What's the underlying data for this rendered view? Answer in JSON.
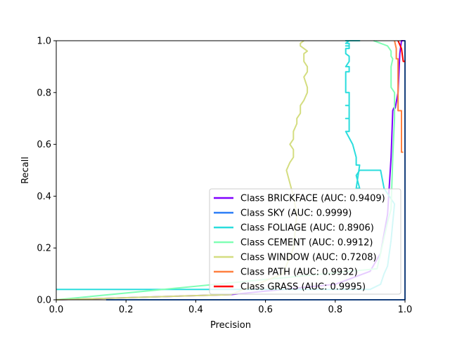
{
  "chart_data": {
    "type": "line",
    "title": "",
    "xlabel": "Precision",
    "ylabel": "Recall",
    "xlim": [
      0,
      1
    ],
    "ylim": [
      0,
      1
    ],
    "xticks": [
      "0.0",
      "0.2",
      "0.4",
      "0.6",
      "0.8",
      "1.0"
    ],
    "yticks": [
      "0.0",
      "0.2",
      "0.4",
      "0.6",
      "0.8",
      "1.0"
    ],
    "grid": false,
    "legend_position": "lower-right",
    "series": [
      {
        "name": "Class BRICKFACE (AUC: 0.9409)",
        "color": "#8000ff",
        "x": [
          0.0,
          0.5,
          0.8,
          0.9,
          0.93,
          0.95,
          0.96,
          0.965,
          0.968,
          0.972,
          0.98,
          0.985,
          0.99,
          1.0
        ],
        "y": [
          0.0,
          0.02,
          0.06,
          0.11,
          0.18,
          0.33,
          0.55,
          0.73,
          0.74,
          0.74,
          0.8,
          0.95,
          1.0,
          1.0
        ]
      },
      {
        "name": "Class SKY (AUC: 0.9999)",
        "color": "#2c7ef7",
        "x": [
          0.143,
          1.0,
          1.0,
          0.995
        ],
        "y": [
          0.0,
          0.0,
          1.0,
          1.0
        ]
      },
      {
        "name": "Class FOLIAGE (AUC: 0.8906)",
        "color": "#2adddd",
        "x": [
          0.0,
          0.9,
          0.93,
          0.94,
          0.95,
          0.96,
          0.97,
          0.94,
          0.93,
          0.87,
          0.86,
          0.87,
          0.86,
          0.87,
          0.86,
          0.86,
          0.85,
          0.83,
          0.84,
          0.84,
          0.83,
          0.84,
          0.84,
          0.83,
          0.84,
          0.84,
          0.84,
          0.83,
          0.83,
          0.83,
          0.84,
          0.84,
          0.83,
          0.84,
          0.84,
          0.84,
          0.83,
          0.83,
          0.83,
          0.83,
          0.84,
          0.84,
          0.84,
          0.83,
          0.84,
          0.84,
          0.83,
          0.84,
          0.84,
          0.83,
          0.84,
          0.84,
          0.85,
          0.86,
          0.86,
          0.87,
          0.87,
          0.86,
          0.86,
          0.86,
          0.86,
          0.87,
          0.87,
          0.86,
          0.86,
          0.86,
          0.87,
          0.86,
          0.86,
          0.86,
          0.86,
          0.87,
          0.86,
          0.86,
          0.87,
          0.86,
          0.86,
          0.86,
          0.87,
          0.86,
          0.85,
          0.84,
          0.83,
          0.85,
          0.84,
          0.84,
          0.83,
          0.84,
          0.84,
          0.84
        ],
        "y": [
          0.04,
          0.04,
          0.06,
          0.1,
          0.13,
          0.23,
          0.37,
          0.43,
          0.5,
          0.5,
          0.48,
          0.43,
          0.43,
          0.52,
          0.52,
          0.55,
          0.6,
          0.65,
          0.65,
          0.7,
          0.7,
          0.7,
          0.75,
          0.75,
          0.75,
          0.8,
          0.8,
          0.8,
          0.83,
          0.88,
          0.88,
          0.9,
          0.9,
          0.92,
          0.92,
          0.94,
          0.95,
          0.95,
          0.96,
          0.97,
          0.97,
          0.98,
          0.98,
          0.98,
          0.98,
          0.99,
          0.99,
          1.0,
          1.0,
          1.0,
          1.0,
          1.0,
          1.0,
          1.0,
          1.0,
          1.0,
          1.0,
          1.0,
          1.0,
          1.0,
          1.0,
          1.0,
          1.0,
          1.0,
          1.0,
          1.0,
          1.0,
          1.0,
          1.0,
          1.0,
          1.0,
          1.0,
          1.0,
          1.0,
          1.0,
          1.0,
          1.0,
          1.0,
          1.0,
          1.0,
          1.0,
          1.0,
          1.0,
          1.0,
          1.0,
          1.0,
          1.0,
          1.0,
          1.0,
          1.0
        ]
      },
      {
        "name": "Class CEMENT (AUC: 0.9912)",
        "color": "#80ffb4",
        "x": [
          0.0,
          0.92,
          0.95,
          0.96,
          0.965,
          0.97,
          0.97,
          0.96,
          0.96,
          0.965,
          0.96,
          0.96,
          0.955,
          0.95,
          0.94,
          0.93,
          0.92,
          0.91
        ],
        "y": [
          0.0,
          0.12,
          0.3,
          0.35,
          0.55,
          0.7,
          0.8,
          0.82,
          0.9,
          0.93,
          0.94,
          0.96,
          0.97,
          0.98,
          0.985,
          0.99,
          0.995,
          1.0
        ]
      },
      {
        "name": "Class WINDOW (AUC: 0.7208)",
        "color": "#d4dd80",
        "x": [
          0.0,
          0.5,
          0.65,
          0.68,
          0.69,
          0.68,
          0.67,
          0.66,
          0.67,
          0.68,
          0.68,
          0.67,
          0.68,
          0.68,
          0.69,
          0.69,
          0.7,
          0.7,
          0.71,
          0.72,
          0.72,
          0.71,
          0.72,
          0.72,
          0.71,
          0.71,
          0.71,
          0.72,
          0.71,
          0.7,
          0.7,
          0.71
        ],
        "y": [
          0.0,
          0.02,
          0.1,
          0.2,
          0.33,
          0.4,
          0.45,
          0.5,
          0.53,
          0.55,
          0.58,
          0.6,
          0.62,
          0.65,
          0.68,
          0.7,
          0.72,
          0.75,
          0.77,
          0.8,
          0.82,
          0.86,
          0.88,
          0.9,
          0.92,
          0.93,
          0.95,
          0.96,
          0.97,
          0.98,
          0.99,
          1.0
        ]
      },
      {
        "name": "Class PATH (AUC: 0.9932)",
        "color": "#ff8040",
        "x": [
          0.995,
          0.99,
          0.99,
          0.98,
          0.98,
          0.975,
          0.975,
          0.97
        ],
        "y": [
          0.57,
          0.57,
          0.73,
          0.73,
          0.93,
          0.93,
          0.97,
          1.0
        ]
      },
      {
        "name": "Class GRASS (AUC: 0.9995)",
        "color": "#ff0000",
        "x": [
          1.0,
          0.995,
          0.99,
          0.98
        ],
        "y": [
          0.92,
          0.92,
          0.97,
          1.0
        ]
      }
    ]
  }
}
